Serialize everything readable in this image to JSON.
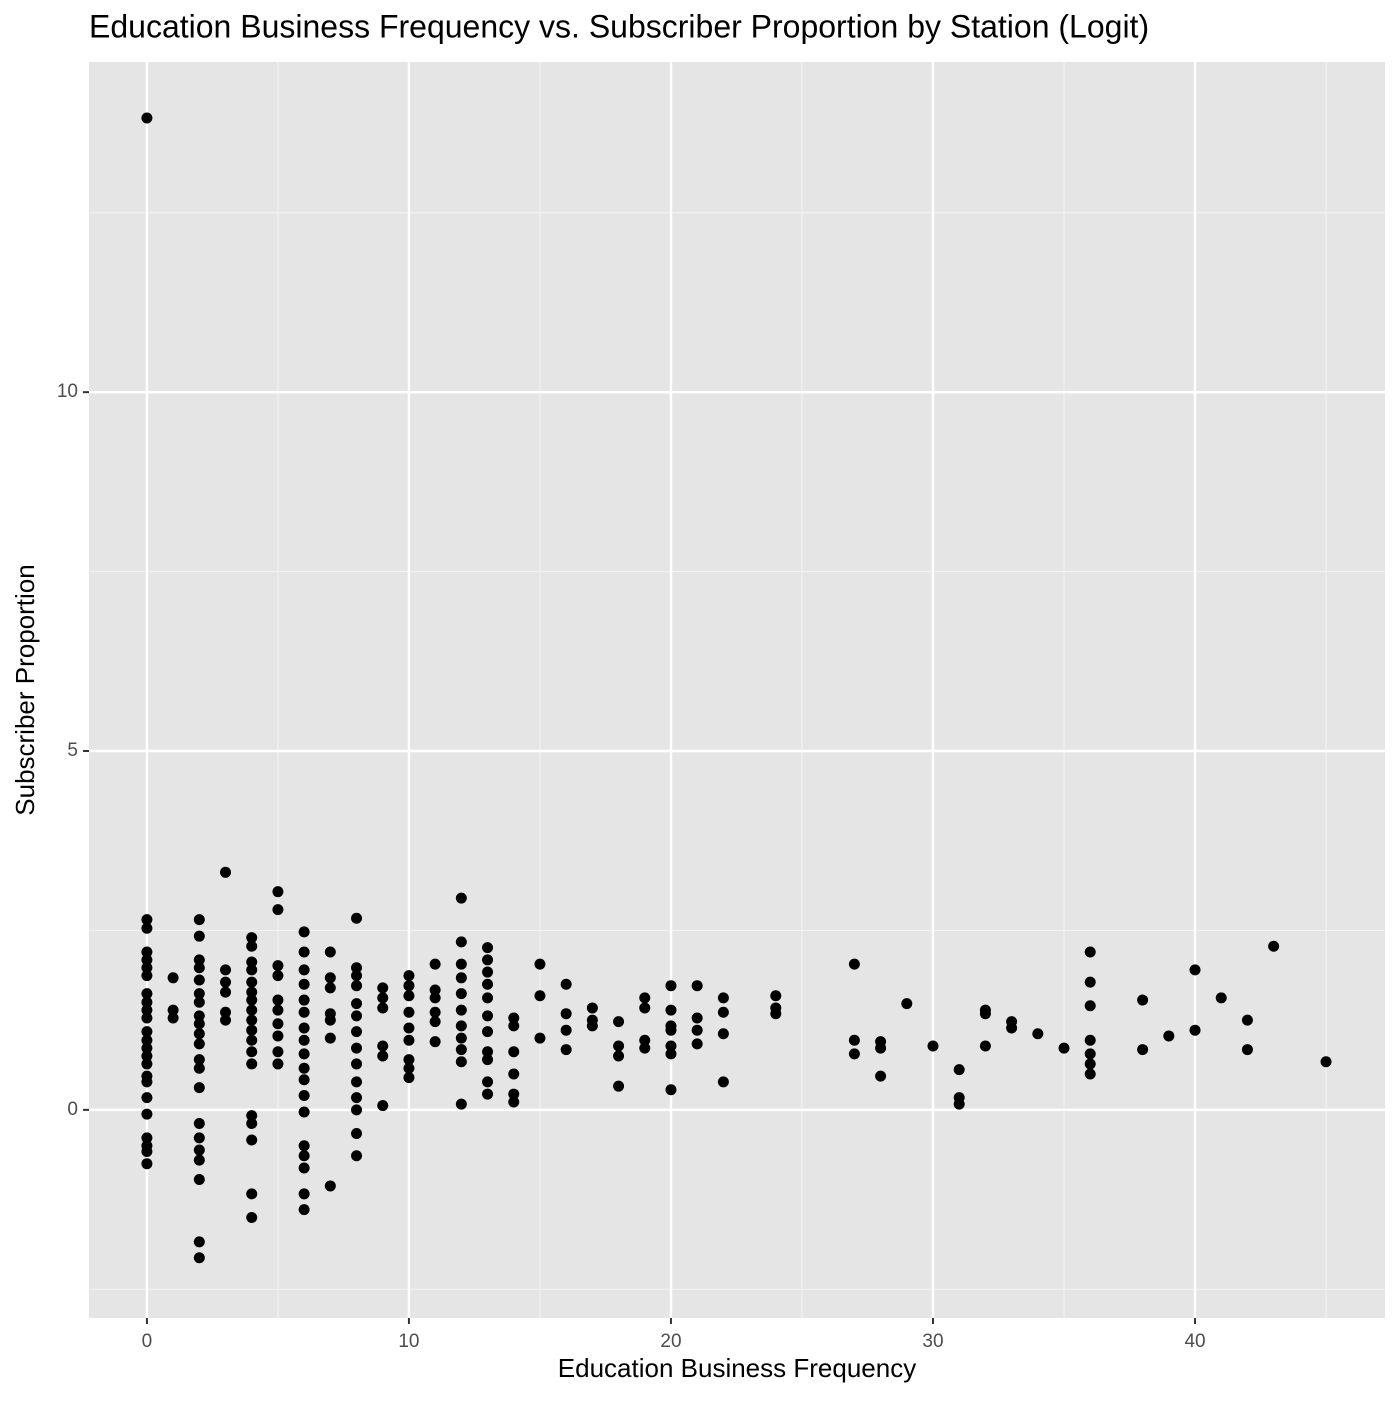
{
  "chart_data": {
    "type": "scatter",
    "title": "Education Business Frequency vs. Subscriber Proportion by Station (Logit)",
    "x_label": "Education Business Frequency",
    "y_label": "Subscriber Proportion",
    "color": "#000000",
    "grid": true,
    "xlim": [
      -2.21,
      47.25
    ],
    "ylim": [
      -2.9,
      14.6
    ],
    "xticks": [
      0,
      10,
      20,
      30,
      40
    ],
    "yticks": [
      0,
      5,
      10
    ],
    "xminor": [
      5,
      15,
      25,
      35,
      45
    ],
    "yminor": [
      -2.5,
      2.5,
      7.5,
      12.5
    ],
    "x": [
      0,
      0,
      0,
      0,
      0,
      0,
      0,
      0,
      0,
      0,
      0,
      0,
      0,
      0,
      0,
      0,
      0,
      0,
      0,
      0,
      0,
      0,
      0,
      0,
      1,
      1,
      1,
      2,
      2,
      2,
      2,
      2,
      2,
      2,
      2,
      2,
      2,
      2,
      2,
      2,
      2,
      2,
      2,
      2,
      2,
      2,
      2,
      2,
      3,
      3,
      3,
      3,
      3,
      3,
      4,
      4,
      4,
      4,
      4,
      4,
      4,
      4,
      4,
      4,
      4,
      4,
      4,
      4,
      4,
      4,
      4,
      4,
      5,
      5,
      5,
      5,
      5,
      5,
      5,
      5,
      5,
      5,
      6,
      6,
      6,
      6,
      6,
      6,
      6,
      6,
      6,
      6,
      6,
      6,
      6,
      6,
      6,
      6,
      6,
      6,
      7,
      7,
      7,
      7,
      7,
      7,
      7,
      8,
      8,
      8,
      8,
      8,
      8,
      8,
      8,
      8,
      8,
      8,
      8,
      8,
      8,
      9,
      9,
      9,
      9,
      9,
      9,
      10,
      10,
      10,
      10,
      10,
      10,
      10,
      10,
      10,
      11,
      11,
      11,
      11,
      11,
      11,
      12,
      12,
      12,
      12,
      12,
      12,
      12,
      12,
      12,
      12,
      12,
      13,
      13,
      13,
      13,
      13,
      13,
      13,
      13,
      13,
      13,
      13,
      14,
      14,
      14,
      14,
      14,
      14,
      15,
      15,
      15,
      16,
      16,
      16,
      16,
      17,
      17,
      17,
      18,
      18,
      18,
      18,
      19,
      19,
      19,
      19,
      20,
      20,
      20,
      20,
      20,
      20,
      20,
      21,
      21,
      21,
      21,
      22,
      22,
      22,
      22,
      24,
      24,
      24,
      27,
      27,
      27,
      28,
      28,
      28,
      29,
      30,
      31,
      31,
      31,
      32,
      32,
      32,
      33,
      33,
      34,
      35,
      36,
      36,
      36,
      36,
      36,
      36,
      36,
      38,
      38,
      39,
      40,
      40,
      41,
      42,
      42,
      43,
      45
    ],
    "y": [
      13.82,
      2.65,
      2.53,
      2.2,
      2.09,
      1.98,
      1.87,
      1.62,
      1.5,
      1.39,
      1.28,
      1.09,
      0.97,
      0.86,
      0.75,
      0.64,
      0.47,
      0.39,
      0.17,
      -0.06,
      -0.39,
      -0.5,
      -0.58,
      -0.75,
      1.84,
      1.39,
      1.28,
      2.65,
      2.42,
      2.09,
      1.98,
      1.81,
      1.62,
      1.5,
      1.31,
      1.2,
      1.06,
      0.92,
      0.7,
      0.58,
      0.31,
      -0.19,
      -0.39,
      -0.56,
      -0.7,
      -0.97,
      -1.84,
      -2.06,
      3.31,
      1.95,
      1.78,
      1.64,
      1.36,
      1.25,
      2.4,
      2.28,
      2.06,
      1.95,
      1.78,
      1.64,
      1.53,
      1.39,
      1.25,
      1.11,
      0.97,
      0.81,
      0.64,
      -0.08,
      -0.19,
      -0.42,
      -1.17,
      -1.5,
      3.04,
      2.79,
      2.01,
      1.87,
      1.53,
      1.39,
      1.2,
      1.03,
      0.81,
      0.64,
      2.48,
      2.2,
      1.95,
      1.75,
      1.53,
      1.36,
      1.14,
      0.97,
      0.78,
      0.58,
      0.42,
      0.2,
      -0.03,
      -0.5,
      -0.64,
      -0.81,
      -1.17,
      -1.39,
      2.2,
      1.84,
      1.7,
      1.34,
      1.25,
      1.0,
      -1.06,
      2.67,
      1.98,
      1.87,
      1.73,
      1.48,
      1.31,
      1.09,
      0.86,
      0.64,
      0.39,
      0.17,
      0,
      -0.33,
      -0.64,
      1.7,
      1.56,
      1.42,
      0.89,
      0.75,
      0.06,
      1.87,
      1.73,
      1.59,
      1.36,
      1.14,
      0.97,
      0.7,
      0.58,
      0.45,
      2.03,
      1.67,
      1.56,
      1.36,
      1.23,
      0.95,
      2.95,
      2.34,
      2.03,
      1.84,
      1.62,
      1.39,
      1.17,
      1.0,
      0.84,
      0.67,
      0.08,
      2.26,
      2.09,
      1.92,
      1.75,
      1.56,
      1.31,
      1.09,
      0.81,
      0.7,
      0.39,
      0.22,
      1.28,
      1.17,
      0.81,
      0.5,
      0.22,
      0.11,
      2.03,
      1.59,
      1.0,
      1.75,
      1.34,
      1.11,
      0.84,
      1.42,
      1.25,
      1.17,
      1.23,
      0.89,
      0.75,
      0.33,
      1.56,
      1.42,
      0.97,
      0.86,
      1.73,
      1.39,
      1.17,
      1.11,
      0.89,
      0.78,
      0.28,
      1.73,
      1.28,
      1.11,
      0.92,
      1.56,
      1.36,
      1.06,
      0.39,
      1.59,
      1.42,
      1.34,
      2.03,
      0.97,
      0.78,
      0.95,
      0.86,
      0.47,
      1.48,
      0.89,
      0.56,
      0.17,
      0.08,
      1.39,
      1.34,
      0.89,
      1.23,
      1.14,
      1.06,
      0.86,
      2.2,
      1.78,
      1.45,
      0.97,
      0.78,
      0.64,
      0.5,
      1.53,
      0.84,
      1.03,
      1.95,
      1.11,
      1.56,
      1.25,
      0.84,
      2.28,
      0.67
    ]
  }
}
